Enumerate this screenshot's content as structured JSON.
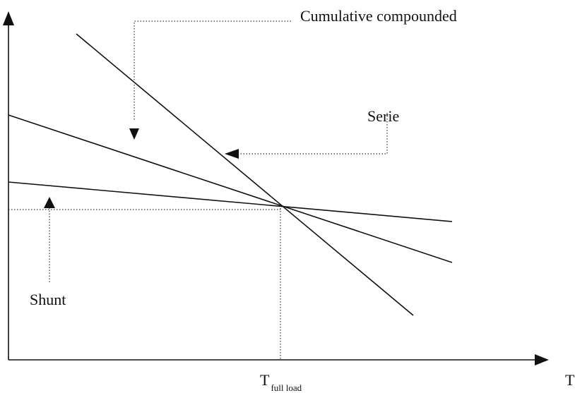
{
  "labels": {
    "cumulative_compounded": "Cumulative  compounded",
    "serie": "Serie",
    "shunt": "Shunt",
    "t_full_load": {
      "main": "T",
      "sub": "full load"
    },
    "x_axis": "T"
  }
}
